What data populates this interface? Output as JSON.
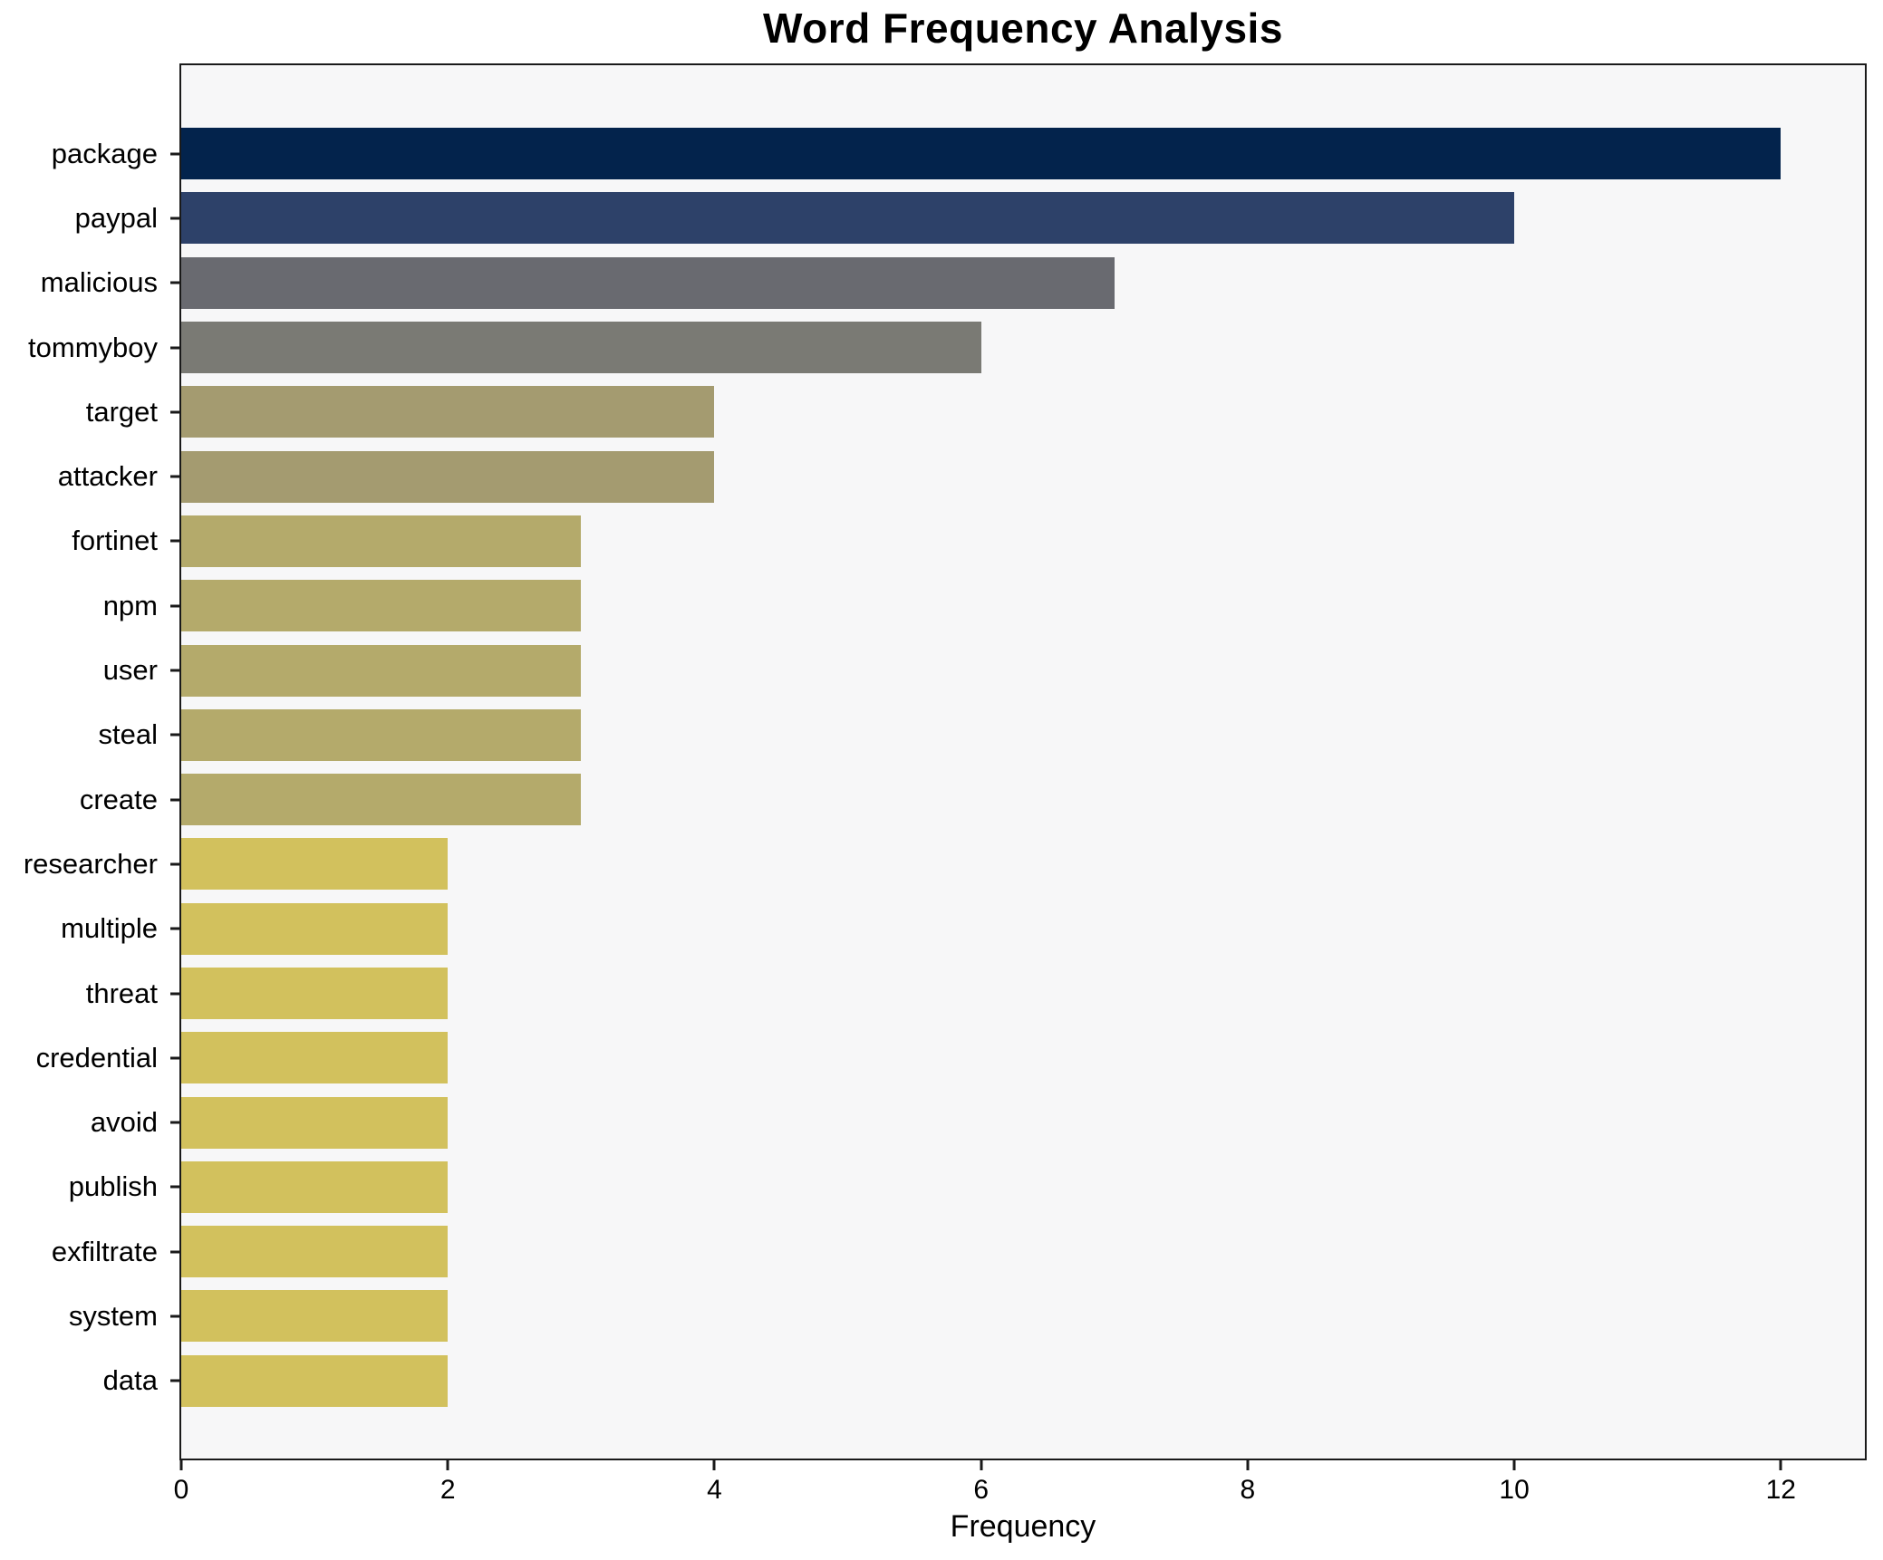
{
  "chart_data": {
    "type": "bar",
    "orientation": "horizontal",
    "title": "Word Frequency Analysis",
    "xlabel": "Frequency",
    "ylabel": "",
    "categories": [
      "package",
      "paypal",
      "malicious",
      "tommyboy",
      "target",
      "attacker",
      "fortinet",
      "npm",
      "user",
      "steal",
      "create",
      "researcher",
      "multiple",
      "threat",
      "credential",
      "avoid",
      "publish",
      "exfiltrate",
      "system",
      "data"
    ],
    "values": [
      12,
      10,
      7,
      6,
      4,
      4,
      3,
      3,
      3,
      3,
      3,
      2,
      2,
      2,
      2,
      2,
      2,
      2,
      2,
      2
    ],
    "bar_colors": [
      "#03234c",
      "#2d4169",
      "#696a70",
      "#7a7a74",
      "#a49b70",
      "#a49b70",
      "#b4aa6b",
      "#b4aa6b",
      "#b4aa6b",
      "#b4aa6b",
      "#b4aa6b",
      "#d2c15d",
      "#d2c15d",
      "#d2c15d",
      "#d2c15d",
      "#d2c15d",
      "#d2c15d",
      "#d2c15d",
      "#d2c15d",
      "#d2c15d"
    ],
    "x_ticks": [
      0,
      2,
      4,
      6,
      8,
      10,
      12
    ],
    "xlim": [
      0,
      12.63
    ],
    "grid": false,
    "legend": false,
    "plot_background": "#f7f7f8",
    "figure_background": "#ffffff",
    "spine_color": "#1a1a1a"
  }
}
